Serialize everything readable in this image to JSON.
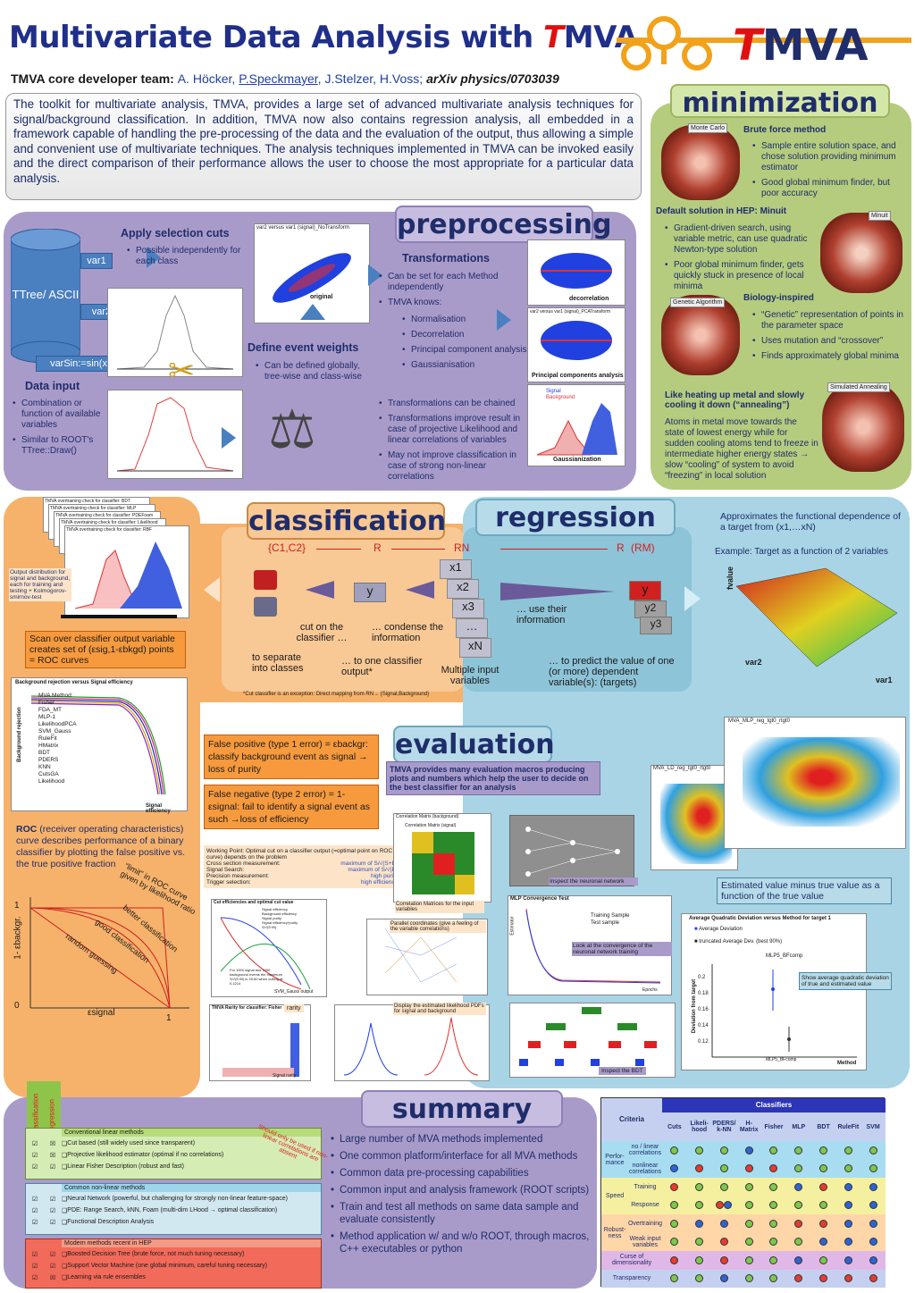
{
  "title": {
    "pre": "Multivariate Data Analysis with ",
    "t": "T",
    "post": "MVA 4"
  },
  "logo": {
    "t": "T",
    "rest": "MVA"
  },
  "authors": {
    "label": "TMVA core developer team:",
    "a1": "A. Höcker,",
    "a2": "P.Speckmayer",
    "a3": ", J.Stelzer, H.Voss;",
    "ref": "arXiv physics/0703039"
  },
  "intro": "The toolkit for multivariate analysis, TMVA, provides a large set of advanced multivariate analysis techniques for signal/background classification. In addition, TMVA now also contains regression analysis, all embedded in a framework capable of handling the pre-processing of the data and the evaluation of the output, thus allowing a simple and convenient use of multivariate techniques. The analysis techniques implemented in TMVA can be invoked easily and the direct comparison of their performance allows the user to choose the most appropriate for a particular data analysis.",
  "preprocessing": {
    "header": "preprocessing",
    "ttree": "TTree/ ASCII",
    "vars": [
      "var1",
      "var2:=z[3]",
      "varSin:=sin(x)+3*y"
    ],
    "cuts_title": "Apply selection cuts",
    "cuts_items": [
      "Possible independently for each class"
    ],
    "input_title": "Data input",
    "input_items": [
      "Combination or function of available variables",
      "Similar to ROOT's TTree::Draw()"
    ],
    "weights_title": "Define event weights",
    "weights_items": [
      "Can be defined globally, tree-wise and class-wise"
    ],
    "trans_title": "Transformations",
    "trans_items": [
      "Can be set for each Method independently",
      "TMVA knows:"
    ],
    "trans_sub": [
      "Normalisation",
      "Decorrelation",
      "Principal component analysis",
      "Gaussianisation"
    ],
    "trans_items2": [
      "Transformations can be chained",
      "Transformations improve result in case of projective Likelihood and linear correlations of variables",
      "May not improve classification in case of strong non-linear correlations"
    ],
    "plot_labels": {
      "orig_title": "var2 versus var1 (signal)_NoTransform",
      "original": "original",
      "decorrelation": "decorrelation",
      "pca": "Principal components analysis",
      "gauss": "Gaussianization",
      "var1": "var1",
      "var2": "var2",
      "signal": "Signal",
      "background": "Background",
      "pca_title": "var2 versus var1 (signal)_PCATransform"
    }
  },
  "minimization": {
    "header": "minimization",
    "brute_title": "Brute force method",
    "brute_items": [
      "Sample entire solution space, and chose solution providing minimum estimator",
      "Good global minimum finder, but poor accuracy"
    ],
    "default_title": "Default solution in HEP: Minuit",
    "default_items": [
      "Gradient-driven search, using variable metric, can use quadratic Newton-type solution",
      "Poor global minimum finder, gets quickly stuck in presence of local minima"
    ],
    "bio_title": "Biology-inspired",
    "bio_items": [
      "“Genetic” representation of points in the parameter space",
      "Uses mutation and “crossover”",
      "Finds approximately global minima"
    ],
    "heat_title": "Like heating up metal and slowly cooling it down (“annealing”)",
    "heat_text": "Atoms in metal move towards the state of lowest energy while for sudden cooling atoms tend to freeze in intermediate higher energy states → slow “cooling” of system to avoid “freezing” in local solution",
    "tags": [
      "Monte Carlo",
      "Minuit",
      "Genetic Algorithm",
      "Simulated Annealing"
    ]
  },
  "classification": {
    "header": "classification",
    "tabs": [
      "TMVA overtraining check for classifier: BDT",
      "TMVA overtraining check for classifier: MLP",
      "TMVA overtraining check for classifier: PDEFoam",
      "TMVA overtraining check for classifier: Likelihood",
      "TMVA overtraining check for classifier: RBF"
    ],
    "output_note": "Output distribution for signal and background, each for training and testing + Kolmogorov-smirnov-test",
    "scan": "Scan over classifier output variable creates set of (εsig,1-εbkgd) points = ROC curves",
    "cn": "{C1,C2}",
    "R": "R",
    "RN": "RN",
    "y": "y",
    "cut": "cut on the classifier …",
    "condense": "… condense the information",
    "separate": "to separate into classes",
    "one": "… to one classifier output*",
    "multi": "Multiple input variables",
    "xs": [
      "x1",
      "x2",
      "x3",
      "…",
      "xN"
    ],
    "footnote": "*Cut classifier is an exception: Direct mapping from RN→ {Signal,Background}",
    "roc_title": "Background rejection versus Signal efficiency",
    "roc_legend": [
      "MVA Method:",
      "Fisher",
      "FDA_MT",
      "MLP-1",
      "LikelihoodPCA",
      "SVM_Gauss",
      "RuleFit",
      "HMatrix",
      "BDT",
      "PDERS",
      "KNN",
      "CutsGA",
      "Likelihood"
    ],
    "roc_ylabel": "Background rejection",
    "roc_xlabel": "Signal efficiency",
    "roc_desc_b": "ROC",
    "roc_desc": " (receiver operating characteristics) curve describes performance of a binary classifier by plotting the false positive vs. the true positive fraction",
    "roc2": {
      "limit": "“limit” in ROC curve given by likelihood ratio",
      "better": "better classification",
      "good": "good classification",
      "random": "random guessing",
      "y": "1- εbackgr.",
      "x": "εsignal",
      "one": "1",
      "zero": "0"
    },
    "fp": "False positive (type 1 error) = εbackgr: classify background event as signal → loss of purity",
    "fn": "False negative (type 2 error) = 1-εsignal: fail to identify a signal event as such →loss of efficiency",
    "wp_title": "Working Point: Optimal cut on a classifier output (=optimal point on ROC curve) depends on the problem",
    "wp_rows": [
      [
        "Cross section measurement:",
        "maximum of S/√(S+B)"
      ],
      [
        "Signal Search:",
        "maximum of S/√(B)"
      ],
      [
        "Precision measurement:",
        "high purity"
      ],
      [
        "Trigger selection:",
        "high efficiency"
      ]
    ],
    "cut_eff_title": "Cut efficiencies and optimal cut value",
    "cut_eff_legend": [
      "Signal efficiency",
      "Background efficiency",
      "Signal purity",
      "Signal efficiency*purity",
      "S/√(S+B)"
    ],
    "cut_eff_xlabel": "SVM_Gauss output",
    "cut_eff_note": "For 1000 signal and 1000 background events the maximum S/√(S+B) is 25.60 when cutting at 0.1214",
    "rarity_title": "TMVA Rarity for classifier: Fisher",
    "rarity": "rarity",
    "rarity_x": "Signal rarity"
  },
  "regression": {
    "header": "regression",
    "desc": "Approximates the functional dependence of a target from (x1,…xN)",
    "example": "Example:  Target as a function of 2 variables",
    "R": "R",
    "RM": "(RM)",
    "use": "… use their information",
    "predict": "… to predict the value of one (or more) dependent variable(s): (targets)",
    "ys": [
      "y",
      "y2",
      "y3"
    ],
    "fvalue": "fvalue",
    "var1": "var1",
    "var2": "var2",
    "mlp_title": "MVA_MLP_reg_tgt0_rtgt0",
    "ld_title": "MVA_LD_reg_tgt0_rtgt0",
    "est": "Estimated value minus true value as a function of the true value"
  },
  "evaluation": {
    "header": "evaluation",
    "desc": "TMVA provides many evaluation macros producing plots and numbers which help the user to decide on the best classifier for an analysis",
    "corr_title": "Correlation Matrix (background)",
    "corr_title2": "Correlation Matrix (signal)",
    "corr": "Correlation Matrices for the input variables",
    "parallel": "Parallel coordinates (give a feeling of the variable correlations)",
    "pdf": "Display the estimated likelihood PDFs for signal and background",
    "nn": "Inspect the neuronal network",
    "conv_title": "MLP Convergence Test",
    "conv_legend": [
      "Training Sample",
      "Test sample"
    ],
    "conv_x": "Epochs",
    "conv_y": "Estimator",
    "conv": "Look at the convergence of the neuronal network training",
    "bdt": "Inspect the BDT",
    "dev_title": "Average Quadratic Deviation versus Method for target 1",
    "dev_l1": "Average Deviation",
    "dev_l2": "truncated Average Dev. (best 90%)",
    "dev_y": "Deviation from target",
    "dev_x": "Method",
    "dev_cat": "MLP5_BFcomp",
    "dev_ticks": [
      "0.2",
      "0.18",
      "0.16",
      "0.14",
      "0.12"
    ],
    "dev_note": "Show average quadratic deviation of true and estimated value"
  },
  "summary": {
    "header": "summary",
    "col_labels": [
      "Classification",
      "Regression"
    ],
    "groups": [
      {
        "title": "Conventional linear methods",
        "color": "#b7dc7a",
        "items": [
          {
            "c": "☑",
            "r": "☒",
            "t": "Cut based (still widely used since transparent)"
          },
          {
            "c": "☑",
            "r": "☒",
            "t": "Projective likelihood estimator (optimal if no correlations)"
          },
          {
            "c": "☑",
            "r": "☑",
            "t": "Linear Fisher Description (robust and fast)"
          }
        ]
      },
      {
        "title": "Common non-linear methods",
        "color": "#9fd5ea",
        "items": [
          {
            "c": "☑",
            "r": "☑",
            "t": "Neural Network (powerful, but challenging for strongly non-linear feature-space)"
          },
          {
            "c": "☑",
            "r": "☑",
            "t": "PDE: Range Search, kNN, Foam (multi-dim LHood → optimal classification)"
          },
          {
            "c": "☑",
            "r": "☑",
            "t": "Functional Description Analysis"
          }
        ]
      },
      {
        "title": "Modern methods recent in HEP",
        "color": "#f59a85",
        "items": [
          {
            "c": "☑",
            "r": "☑",
            "t": "Boosted Decision Tree (brute force, not much tuning necessary)"
          },
          {
            "c": "☑",
            "r": "☑",
            "t": "Support Vector Machine (one global minimum, careful tuning necessary)"
          },
          {
            "c": "☑",
            "r": "☒",
            "t": "Learning via rule ensembles"
          }
        ]
      }
    ],
    "stamp": "Should only be used if non-linear correlations are absent",
    "items": [
      "Large number of MVA methods implemented",
      "One common platform/interface for all MVA methods",
      "Common data pre-processing capabilities",
      "Common input and analysis framework (ROOT scripts)",
      "Train and test all methods on same data sample and evaluate consistently",
      "Method application w/ and w/o ROOT, through macros, C++ executables or python"
    ],
    "table": {
      "criteria": "Criteria",
      "classifiers": "Classifiers",
      "cols": [
        "Cuts",
        "Likeli-hood",
        "PDERS/ k-NN",
        "H-Matrix",
        "Fisher",
        "MLP",
        "BDT",
        "RuleFit",
        "SVM"
      ],
      "rows": [
        {
          "g": "Perfor-mance",
          "l": "no / linear correlations",
          "v": "gggmggggg"
        },
        {
          "g": "",
          "l": "nonlinear correlations",
          "v": "msgssgggg"
        },
        {
          "g": "Speed",
          "l": "Training",
          "v": "sggggmsmm"
        },
        {
          "g": "",
          "l": "Response",
          "v": "ggxggggmm"
        },
        {
          "g": "Robust-ness",
          "l": "Overtraining",
          "v": "gmmggssmm"
        },
        {
          "g": "",
          "l": "Weak input variables",
          "v": "ggsgggmmm"
        },
        {
          "g": "Curse of dimensionality",
          "l": "",
          "v": "sgsggmgmm"
        },
        {
          "g": "Transparency",
          "l": "",
          "v": "ggmggssss"
        }
      ]
    }
  },
  "colors": {
    "navy": "#1f2d6b",
    "prep": "#a99bc9",
    "min": "#b5cc7e",
    "cls": "#f6b26b",
    "reg": "#a8d4e5",
    "red": "#e01010"
  }
}
